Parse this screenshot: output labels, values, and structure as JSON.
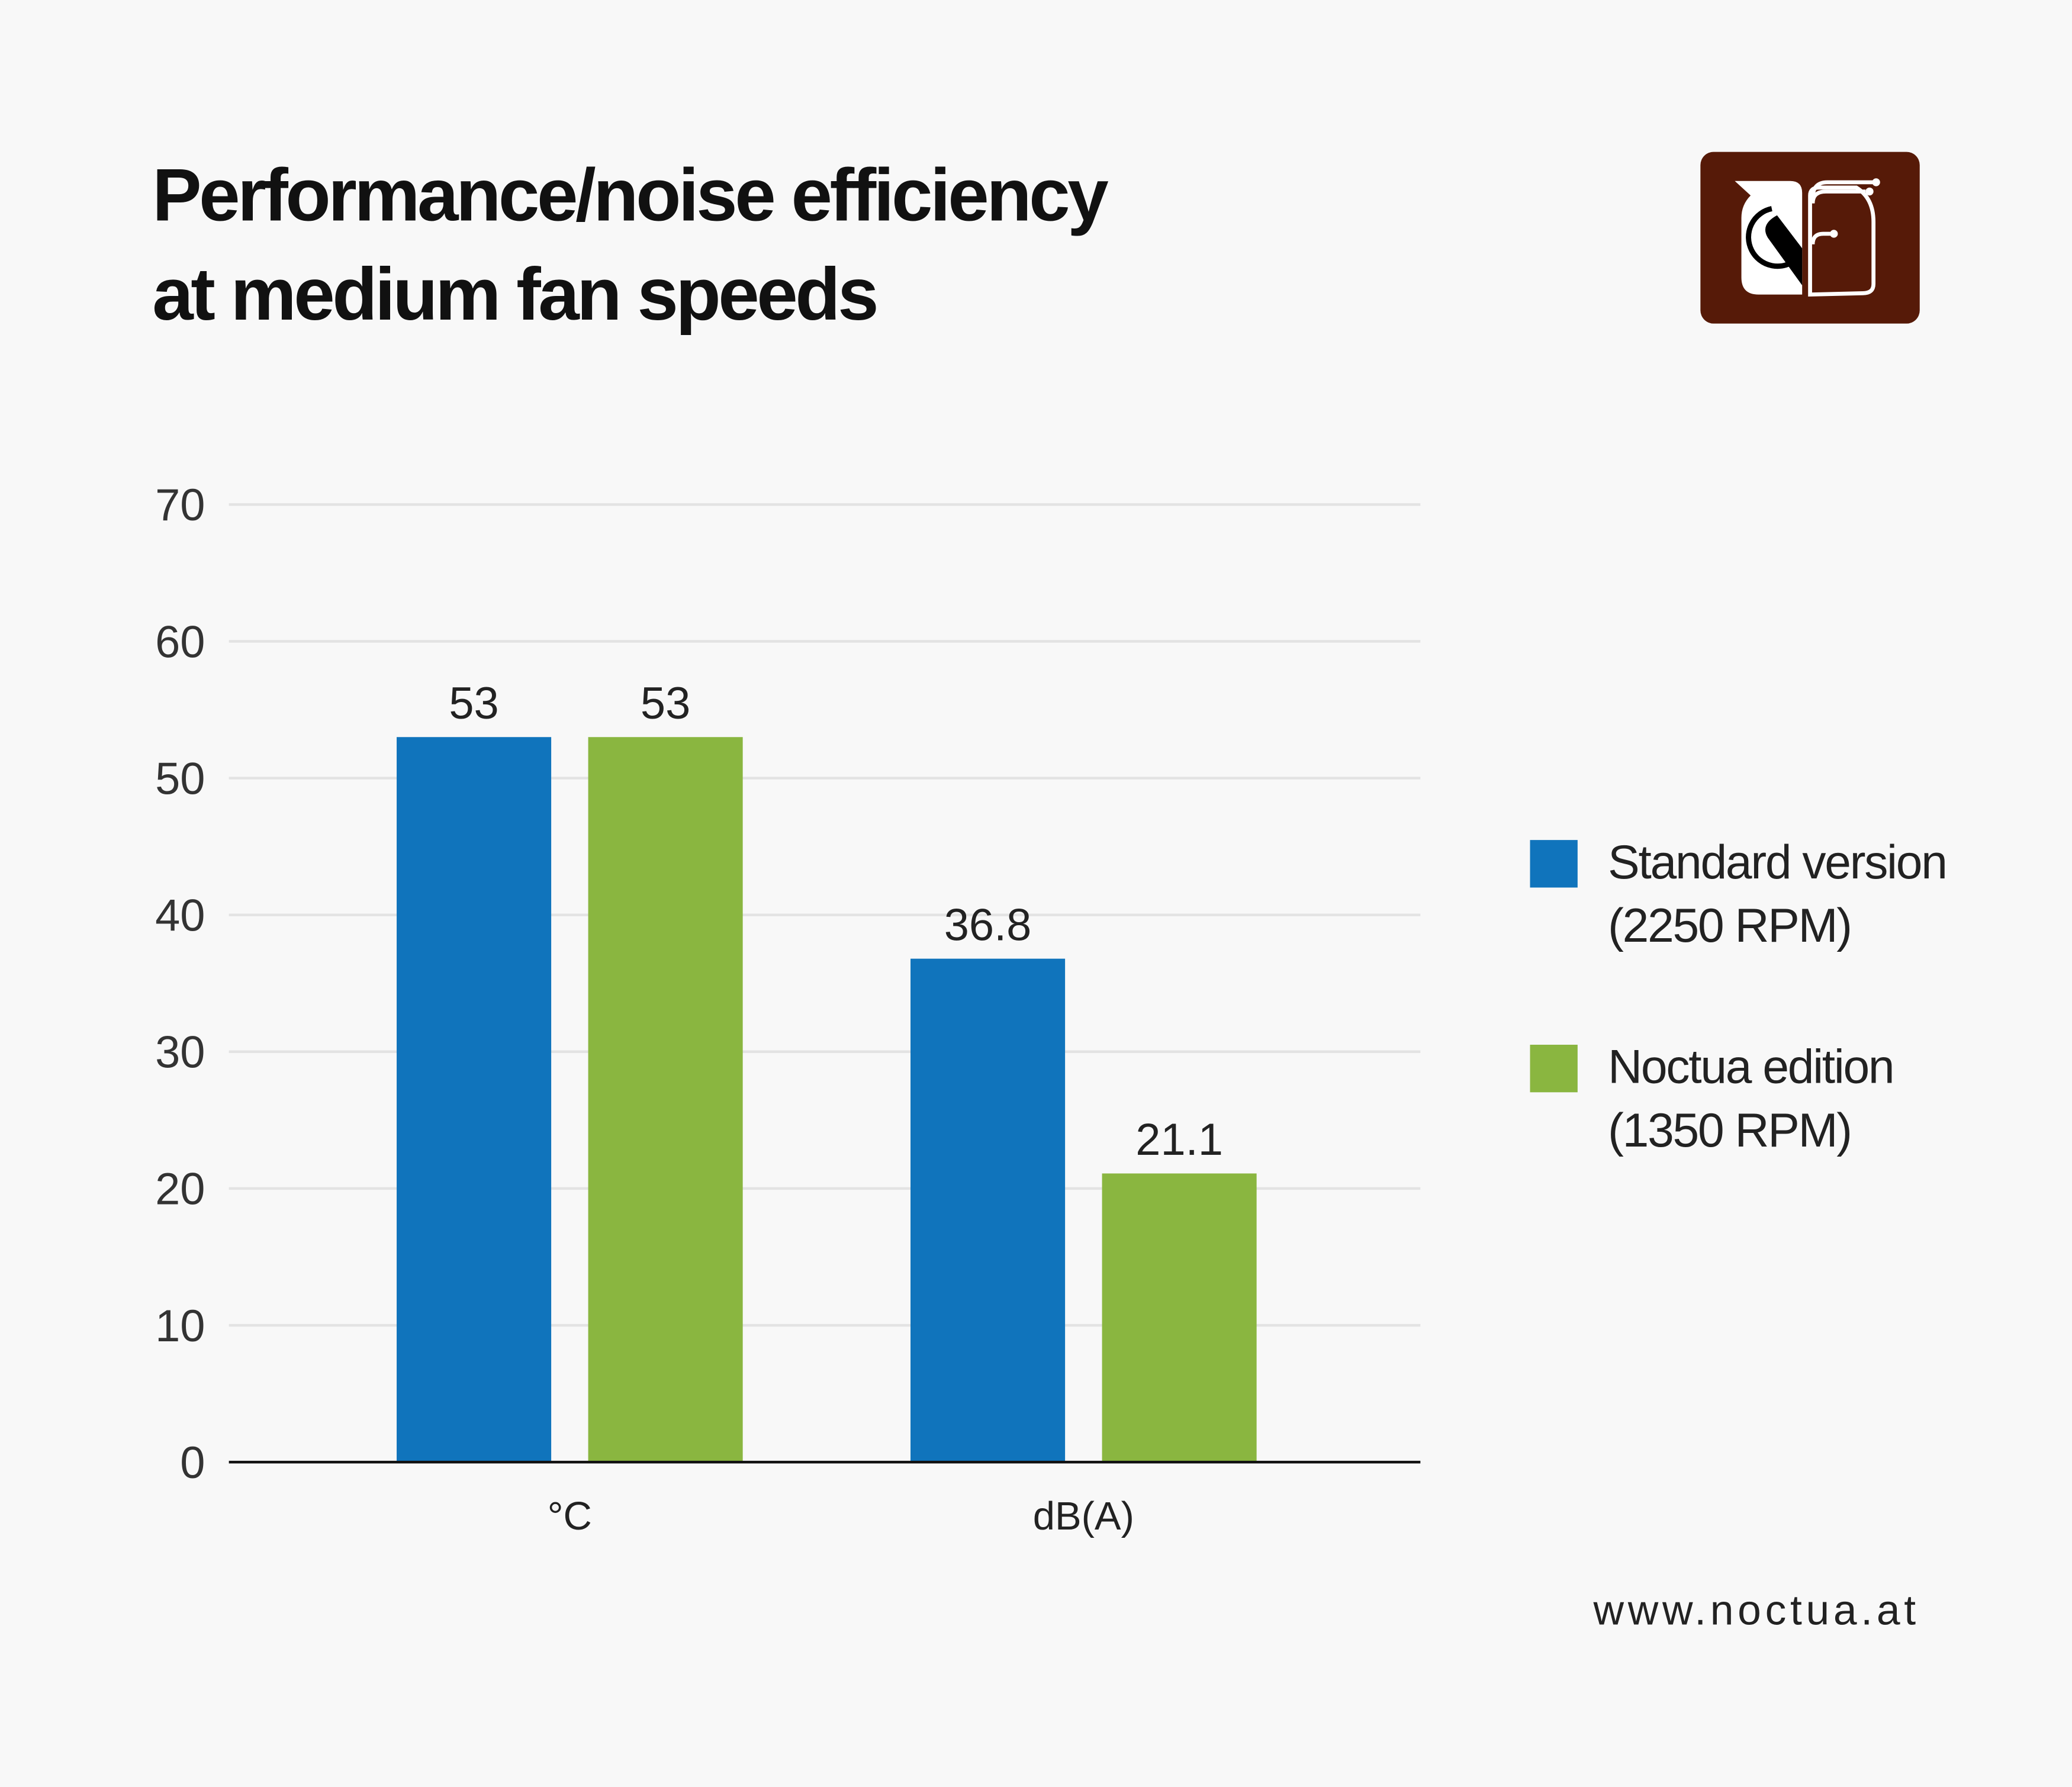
{
  "header": {
    "title_line1": "Performance/noise efficiency",
    "title_line2": "at medium fan speeds",
    "logo": "noctua-owl-logo"
  },
  "footer": {
    "url": "www.noctua.at"
  },
  "colors": {
    "background": "#f8f8f8",
    "standard": "#1074bc",
    "noctua": "#8ab640",
    "logo_bg": "#561a08"
  },
  "chart_data": {
    "type": "bar",
    "categories": [
      "°C",
      "dB(A)"
    ],
    "series": [
      {
        "name_line1": "Standard version",
        "name_line2": "(2250 RPM)",
        "color": "#1074bc",
        "values": [
          53,
          36.8
        ],
        "labels": [
          "53",
          "36.8"
        ]
      },
      {
        "name_line1": "Noctua edition",
        "name_line2": "(1350 RPM)",
        "color": "#8ab640",
        "values": [
          53,
          21.1
        ],
        "labels": [
          "53",
          "21.1"
        ]
      }
    ],
    "ylim": [
      0,
      70
    ],
    "yticks": [
      "0",
      "10",
      "20",
      "30",
      "40",
      "50",
      "60",
      "70"
    ],
    "grid": true,
    "legend": "right"
  }
}
